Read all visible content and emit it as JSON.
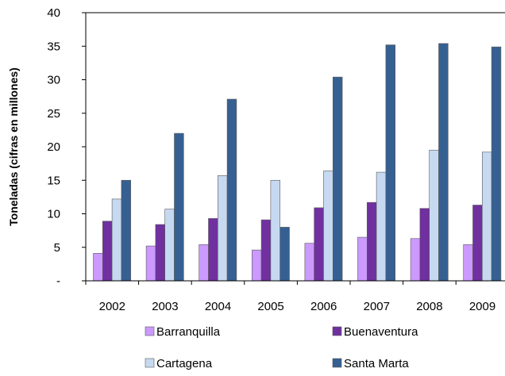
{
  "chart_data": {
    "type": "bar",
    "ylabel": "Toneladas (cifras en millones)",
    "xlabel": "",
    "title": "",
    "categories": [
      "2002",
      "2003",
      "2004",
      "2005",
      "2006",
      "2007",
      "2008",
      "2009"
    ],
    "ylim": [
      0,
      40
    ],
    "yticks": [
      {
        "value": 0,
        "label": "-"
      },
      {
        "value": 5,
        "label": "5"
      },
      {
        "value": 10,
        "label": "10"
      },
      {
        "value": 15,
        "label": "15"
      },
      {
        "value": 20,
        "label": "20"
      },
      {
        "value": 25,
        "label": "25"
      },
      {
        "value": 30,
        "label": "30"
      },
      {
        "value": 35,
        "label": "35"
      },
      {
        "value": 40,
        "label": "40"
      }
    ],
    "grid": false,
    "legend_position": "bottom",
    "series": [
      {
        "name": "Barranquilla",
        "color": "#cc99ff",
        "values": [
          4.1,
          5.2,
          5.4,
          4.6,
          5.6,
          6.5,
          6.3,
          5.4
        ]
      },
      {
        "name": "Buenaventura",
        "color": "#7030a0",
        "values": [
          8.9,
          8.4,
          9.3,
          9.1,
          10.9,
          11.7,
          10.8,
          11.3
        ]
      },
      {
        "name": "Cartagena",
        "color": "#c6d9f1",
        "values": [
          12.2,
          10.7,
          15.7,
          15.0,
          16.4,
          16.2,
          19.5,
          19.2
        ]
      },
      {
        "name": "Santa Marta",
        "color": "#366092",
        "values": [
          15.0,
          22.0,
          27.1,
          8.0,
          30.4,
          35.2,
          35.4,
          34.9
        ]
      }
    ]
  }
}
